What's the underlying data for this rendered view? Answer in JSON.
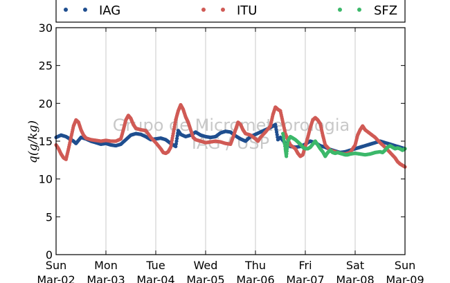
{
  "chart_data": {
    "type": "scatter",
    "ylabel": "q(g/kg)",
    "ylim": [
      0,
      30
    ],
    "yticks": [
      0,
      5,
      10,
      15,
      20,
      25,
      30
    ],
    "xlim": [
      0,
      7
    ],
    "xtick_days": [
      "Sun",
      "Mon",
      "Tue",
      "Wed",
      "Thu",
      "Fri",
      "Sat",
      "Sun"
    ],
    "xtick_dates": [
      "Mar-02",
      "Mar-03",
      "Mar-04",
      "Mar-05",
      "Mar-06",
      "Mar-07",
      "Mar-08",
      "Mar-09"
    ],
    "grid": "vertical",
    "legend_position": "top",
    "watermark": [
      "Grupo de Micrometeorologia",
      "IAG / USP"
    ],
    "series": [
      {
        "name": "IAG",
        "color": "#1f4e8f",
        "points": [
          [
            0.0,
            15.5
          ],
          [
            0.1,
            15.8
          ],
          [
            0.2,
            15.6
          ],
          [
            0.3,
            15.2
          ],
          [
            0.35,
            15.0
          ],
          [
            0.4,
            14.7
          ],
          [
            0.5,
            15.5
          ],
          [
            0.6,
            15.3
          ],
          [
            0.7,
            15.0
          ],
          [
            0.8,
            14.8
          ],
          [
            0.9,
            14.6
          ],
          [
            1.0,
            14.7
          ],
          [
            1.1,
            14.5
          ],
          [
            1.2,
            14.4
          ],
          [
            1.3,
            14.6
          ],
          [
            1.4,
            15.2
          ],
          [
            1.5,
            15.8
          ],
          [
            1.6,
            16.0
          ],
          [
            1.7,
            15.9
          ],
          [
            1.8,
            15.6
          ],
          [
            1.9,
            15.2
          ],
          [
            2.0,
            15.3
          ],
          [
            2.1,
            15.4
          ],
          [
            2.2,
            15.2
          ],
          [
            2.3,
            14.7
          ],
          [
            2.4,
            14.3
          ],
          [
            2.45,
            16.4
          ],
          [
            2.5,
            15.9
          ],
          [
            2.6,
            15.6
          ],
          [
            2.7,
            15.8
          ],
          [
            2.8,
            16.2
          ],
          [
            2.9,
            15.8
          ],
          [
            3.0,
            15.6
          ],
          [
            3.1,
            15.5
          ],
          [
            3.2,
            15.6
          ],
          [
            3.3,
            16.1
          ],
          [
            3.4,
            16.3
          ],
          [
            3.5,
            16.2
          ],
          [
            3.6,
            15.7
          ],
          [
            3.7,
            15.3
          ],
          [
            3.8,
            15.0
          ],
          [
            3.9,
            15.6
          ],
          [
            4.0,
            15.9
          ],
          [
            4.1,
            16.2
          ],
          [
            4.2,
            16.5
          ],
          [
            4.3,
            16.8
          ],
          [
            4.4,
            17.2
          ],
          [
            4.45,
            15.2
          ],
          [
            4.5,
            15.5
          ],
          [
            4.6,
            14.7
          ],
          [
            4.7,
            14.3
          ],
          [
            4.8,
            14.2
          ],
          [
            4.9,
            14.3
          ],
          [
            5.0,
            14.6
          ],
          [
            5.1,
            15.0
          ],
          [
            5.2,
            14.8
          ],
          [
            5.3,
            14.4
          ],
          [
            5.4,
            14.2
          ],
          [
            5.5,
            13.9
          ],
          [
            5.6,
            13.7
          ],
          [
            5.7,
            13.5
          ],
          [
            5.8,
            13.6
          ],
          [
            5.9,
            13.8
          ],
          [
            6.0,
            14.0
          ],
          [
            6.1,
            14.2
          ],
          [
            6.2,
            14.4
          ],
          [
            6.3,
            14.6
          ],
          [
            6.4,
            14.8
          ],
          [
            6.5,
            15.0
          ],
          [
            6.6,
            14.8
          ],
          [
            6.7,
            14.6
          ],
          [
            6.8,
            14.4
          ],
          [
            6.9,
            14.2
          ],
          [
            7.0,
            14.0
          ]
        ]
      },
      {
        "name": "ITU",
        "color": "#d05a55",
        "points": [
          [
            0.0,
            14.5
          ],
          [
            0.05,
            14.0
          ],
          [
            0.1,
            13.3
          ],
          [
            0.15,
            12.8
          ],
          [
            0.2,
            12.6
          ],
          [
            0.25,
            14.0
          ],
          [
            0.3,
            15.5
          ],
          [
            0.35,
            17.0
          ],
          [
            0.4,
            17.8
          ],
          [
            0.45,
            17.5
          ],
          [
            0.5,
            16.5
          ],
          [
            0.55,
            15.8
          ],
          [
            0.6,
            15.4
          ],
          [
            0.7,
            15.2
          ],
          [
            0.8,
            15.1
          ],
          [
            0.9,
            15.0
          ],
          [
            1.0,
            15.1
          ],
          [
            1.1,
            15.0
          ],
          [
            1.2,
            15.0
          ],
          [
            1.3,
            15.3
          ],
          [
            1.35,
            16.5
          ],
          [
            1.4,
            17.8
          ],
          [
            1.45,
            18.4
          ],
          [
            1.5,
            18.0
          ],
          [
            1.55,
            17.2
          ],
          [
            1.6,
            16.7
          ],
          [
            1.7,
            16.5
          ],
          [
            1.8,
            16.4
          ],
          [
            1.9,
            15.5
          ],
          [
            2.0,
            14.8
          ],
          [
            2.1,
            14.0
          ],
          [
            2.15,
            13.5
          ],
          [
            2.2,
            13.4
          ],
          [
            2.25,
            13.6
          ],
          [
            2.3,
            14.2
          ],
          [
            2.35,
            16.0
          ],
          [
            2.4,
            17.8
          ],
          [
            2.45,
            19.0
          ],
          [
            2.5,
            19.8
          ],
          [
            2.55,
            19.2
          ],
          [
            2.6,
            18.2
          ],
          [
            2.65,
            17.5
          ],
          [
            2.7,
            16.5
          ],
          [
            2.75,
            15.5
          ],
          [
            2.8,
            15.2
          ],
          [
            2.9,
            15.0
          ],
          [
            3.0,
            14.8
          ],
          [
            3.1,
            14.9
          ],
          [
            3.2,
            15.0
          ],
          [
            3.3,
            14.9
          ],
          [
            3.4,
            14.7
          ],
          [
            3.5,
            14.6
          ],
          [
            3.55,
            15.5
          ],
          [
            3.6,
            16.5
          ],
          [
            3.65,
            17.5
          ],
          [
            3.7,
            17.2
          ],
          [
            3.75,
            16.5
          ],
          [
            3.8,
            16.0
          ],
          [
            3.9,
            15.8
          ],
          [
            4.0,
            15.3
          ],
          [
            4.05,
            15.0
          ],
          [
            4.1,
            15.5
          ],
          [
            4.2,
            16.2
          ],
          [
            4.3,
            17.0
          ],
          [
            4.35,
            18.5
          ],
          [
            4.4,
            19.5
          ],
          [
            4.45,
            19.2
          ],
          [
            4.5,
            19.0
          ],
          [
            4.55,
            17.5
          ],
          [
            4.6,
            16.0
          ],
          [
            4.65,
            15.2
          ],
          [
            4.7,
            14.5
          ],
          [
            4.8,
            14.0
          ],
          [
            4.85,
            13.4
          ],
          [
            4.9,
            13.0
          ],
          [
            4.95,
            13.2
          ],
          [
            5.0,
            14.3
          ],
          [
            5.05,
            15.5
          ],
          [
            5.1,
            16.8
          ],
          [
            5.15,
            17.8
          ],
          [
            5.2,
            18.1
          ],
          [
            5.25,
            17.8
          ],
          [
            5.3,
            17.3
          ],
          [
            5.35,
            15.8
          ],
          [
            5.4,
            14.5
          ],
          [
            5.5,
            13.8
          ],
          [
            5.6,
            13.6
          ],
          [
            5.7,
            13.4
          ],
          [
            5.8,
            13.3
          ],
          [
            5.9,
            13.5
          ],
          [
            6.0,
            14.5
          ],
          [
            6.05,
            15.8
          ],
          [
            6.1,
            16.5
          ],
          [
            6.15,
            17.0
          ],
          [
            6.2,
            16.5
          ],
          [
            6.3,
            16.0
          ],
          [
            6.4,
            15.5
          ],
          [
            6.5,
            14.8
          ],
          [
            6.6,
            14.2
          ],
          [
            6.7,
            13.5
          ],
          [
            6.8,
            12.8
          ],
          [
            6.85,
            12.3
          ],
          [
            6.9,
            12.0
          ],
          [
            6.95,
            11.8
          ],
          [
            7.0,
            11.6
          ]
        ]
      },
      {
        "name": "SFZ",
        "color": "#3cb86a",
        "points": [
          [
            4.55,
            16.0
          ],
          [
            4.6,
            14.0
          ],
          [
            4.62,
            13.0
          ],
          [
            4.65,
            15.0
          ],
          [
            4.7,
            15.6
          ],
          [
            4.75,
            15.4
          ],
          [
            4.8,
            15.2
          ],
          [
            4.85,
            14.9
          ],
          [
            4.9,
            14.6
          ],
          [
            4.95,
            14.2
          ],
          [
            5.0,
            14.0
          ],
          [
            5.05,
            14.0
          ],
          [
            5.1,
            14.2
          ],
          [
            5.15,
            14.6
          ],
          [
            5.2,
            15.0
          ],
          [
            5.25,
            14.5
          ],
          [
            5.3,
            14.0
          ],
          [
            5.35,
            13.6
          ],
          [
            5.4,
            13.0
          ],
          [
            5.45,
            13.5
          ],
          [
            5.5,
            13.8
          ],
          [
            5.55,
            13.5
          ],
          [
            5.6,
            13.4
          ],
          [
            5.65,
            13.5
          ],
          [
            5.7,
            13.4
          ],
          [
            5.75,
            13.3
          ],
          [
            5.8,
            13.2
          ],
          [
            5.85,
            13.2
          ],
          [
            5.9,
            13.3
          ],
          [
            6.0,
            13.4
          ],
          [
            6.1,
            13.3
          ],
          [
            6.2,
            13.2
          ],
          [
            6.3,
            13.3
          ],
          [
            6.4,
            13.5
          ],
          [
            6.5,
            13.6
          ],
          [
            6.55,
            13.5
          ],
          [
            6.6,
            13.8
          ],
          [
            6.65,
            14.2
          ],
          [
            6.7,
            14.4
          ],
          [
            6.75,
            14.2
          ],
          [
            6.8,
            14.0
          ],
          [
            6.85,
            14.1
          ],
          [
            6.9,
            14.0
          ],
          [
            6.95,
            13.8
          ],
          [
            7.0,
            14.0
          ]
        ]
      }
    ]
  }
}
